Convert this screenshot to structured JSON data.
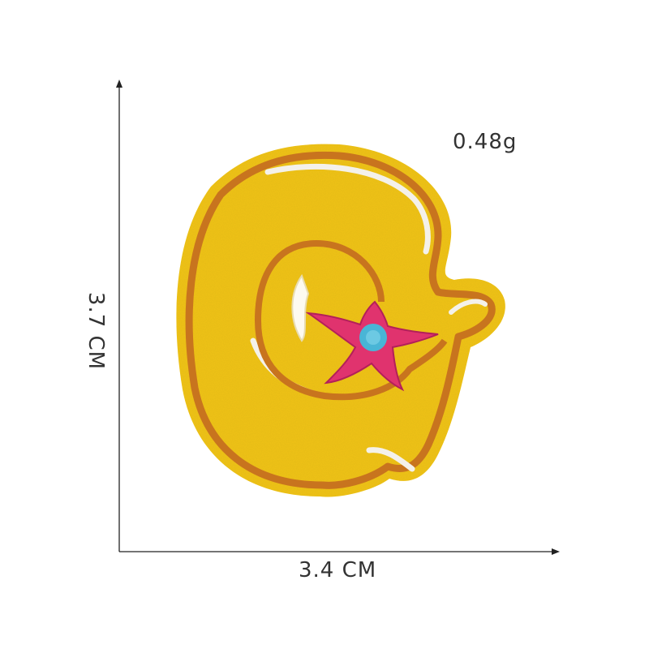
{
  "product": {
    "weight_label": "0.48g",
    "width_label": "3.4 CM",
    "height_label": "3.7 CM"
  },
  "colors": {
    "felt": "#f2c31a",
    "border": "#c8741e",
    "white_stitch": "#f4f1ea",
    "star": "#e0336e",
    "star_center": "#49b5d6",
    "axis": "#222222"
  },
  "icons": {
    "patch": "letter-g-patch-icon",
    "star": "star-icon"
  }
}
